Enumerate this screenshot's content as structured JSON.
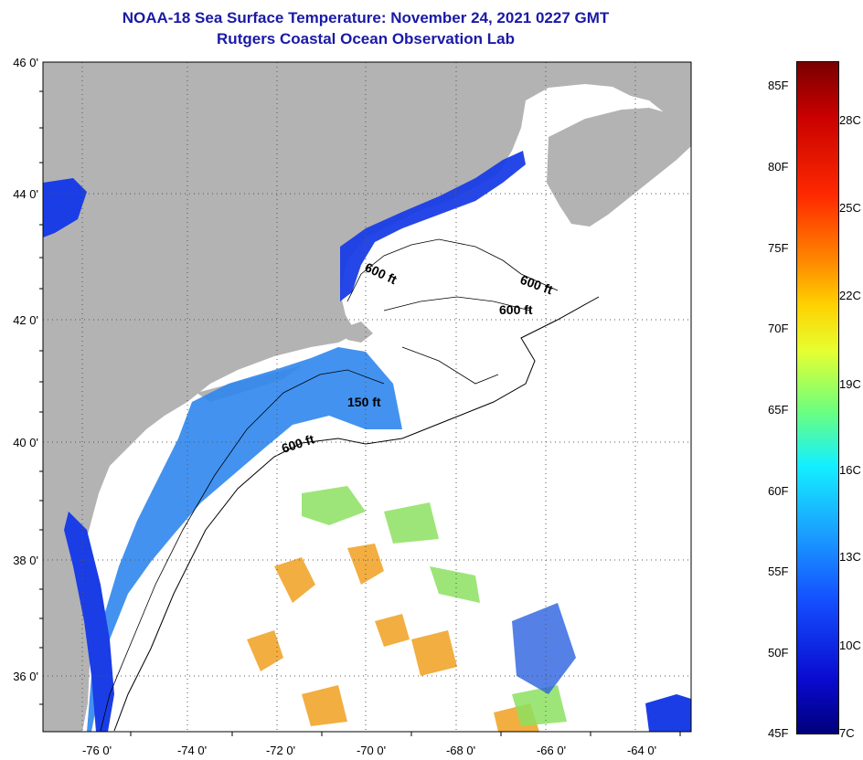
{
  "title": "NOAA-18 Sea Surface Temperature:  November 24, 2021 0227 GMT",
  "subtitle": "Rutgers Coastal Ocean Observation Lab",
  "axes": {
    "lat_ticks": [
      "46 0'",
      "44 0'",
      "42 0'",
      "40 0'",
      "38 0'",
      "36 0'"
    ],
    "lon_ticks": [
      "-76 0'",
      "-74 0'",
      "-72 0'",
      "-70 0'",
      "-68 0'",
      "-66 0'",
      "-64 0'"
    ]
  },
  "contours": [
    {
      "label": "600 ft"
    },
    {
      "label": "600 ft"
    },
    {
      "label": "600 ft"
    },
    {
      "label": "150 ft"
    },
    {
      "label": "600 ft"
    }
  ],
  "colorbar": {
    "fahrenheit": [
      "85F",
      "80F",
      "75F",
      "70F",
      "65F",
      "60F",
      "55F",
      "50F",
      "45F"
    ],
    "celsius": [
      "28C",
      "25C",
      "22C",
      "19C",
      "16C",
      "13C",
      "10C",
      "7C"
    ]
  },
  "colors": {
    "land": "#b3b3b3",
    "ocean_no_data": "#ffffff",
    "title": "#1a1aa6"
  }
}
